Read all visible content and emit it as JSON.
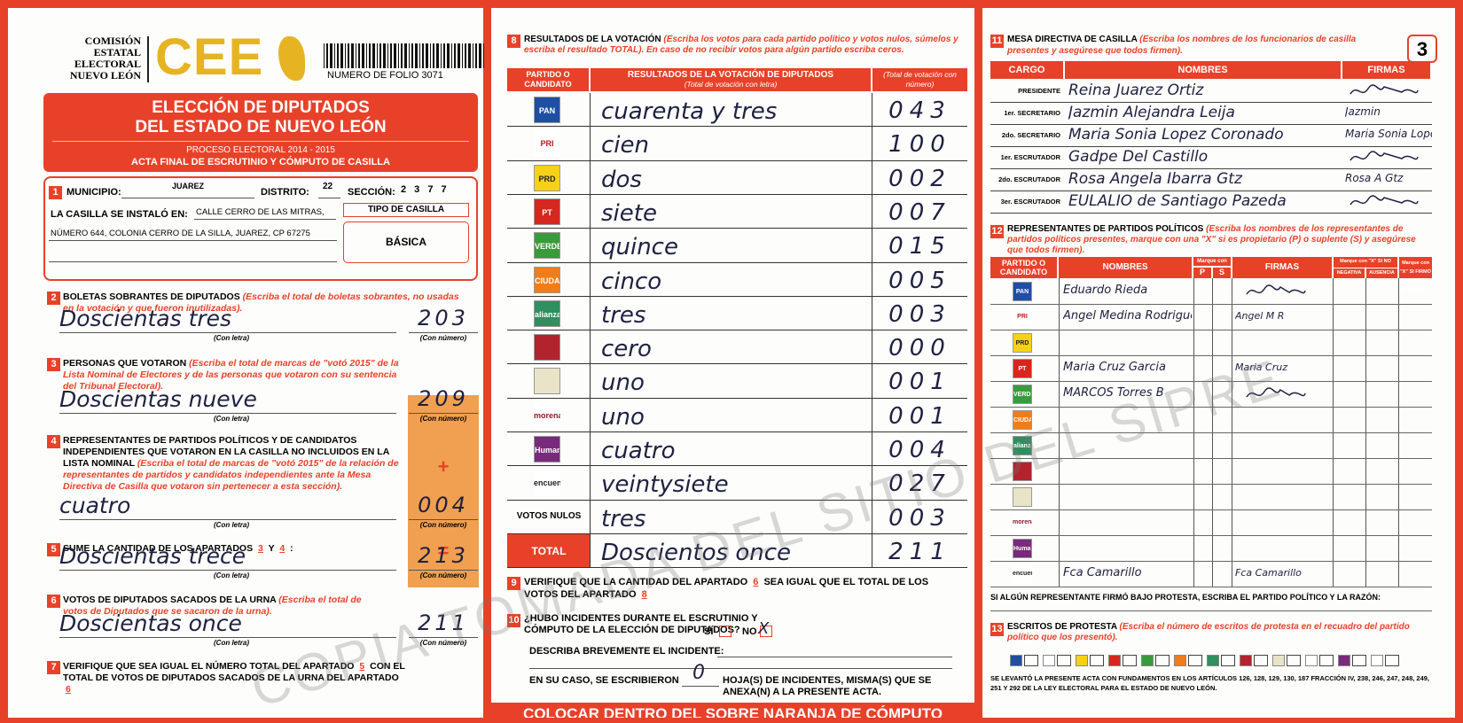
{
  "page_number": "3",
  "header": {
    "commission": [
      "COMISIÓN",
      "ESTATAL",
      "ELECTORAL",
      "NUEVO LEÓN"
    ],
    "logo": "CEE",
    "folio": "NUMERO DE FOLIO 3071"
  },
  "title": {
    "lines": [
      "ELECCIÓN DE DIPUTADOS",
      "DEL ESTADO DE NUEVO LEÓN"
    ],
    "process": "PROCESO ELECTORAL 2014 - 2015",
    "act": "ACTA FINAL DE ESCRUTINIO Y CÓMPUTO DE CASILLA"
  },
  "s1": {
    "number": "1",
    "municipio_label": "MUNICIPIO:",
    "municipio": "JUAREZ",
    "distrito_label": "DISTRITO:",
    "distrito": "22",
    "seccion_label": "SECCIÓN:",
    "seccion": "2 3 7 7",
    "installed_label": "LA CASILLA SE INSTALÓ EN:",
    "address": [
      "CALLE CERRO DE LAS MITRAS,",
      "NÚMERO 644, COLONIA CERRO DE LA SILLA, JUAREZ, CP 67275"
    ],
    "tipo_label": "TIPO DE CASILLA",
    "tipo": "BÁSICA"
  },
  "labels": {
    "con_letra": "(Con letra)",
    "con_numero": "(Con número)",
    "plus": "+",
    "equals": "="
  },
  "sections": [
    {
      "number": "2",
      "heading": [
        "BOLETAS SOBRANTES DE DIPUTADOS"
      ],
      "instruction": "(Escriba el total de boletas sobrantes, no usadas en la votación y que fueron inutilizadas).",
      "words": "Doscientas tres",
      "figure": "203"
    },
    {
      "number": "3",
      "heading": [
        "PERSONAS QUE VOTARON"
      ],
      "instruction": "(Escriba el total de marcas de \"votó 2015\" de la Lista Nominal de Electores y de las personas que votaron con su sentencia del Tribunal Electoral).",
      "words": "Doscientas nueve",
      "figure": "209"
    },
    {
      "number": "4",
      "heading": [
        "REPRESENTANTES DE PARTIDOS POLÍTICOS Y DE CANDIDATOS INDEPENDIENTES QUE VOTARON EN LA CASILLA NO INCLUIDOS EN LA LISTA NOMINAL"
      ],
      "instruction": "(Escriba el total de marcas de \"votó 2015\" de la relación de representantes de partidos y candidatos independientes ante la Mesa Directiva de Casilla que votaron sin pertenecer a esta sección).",
      "words": "cuatro",
      "figure": "004"
    },
    {
      "number": "5",
      "heading": [
        "SUME LA CANTIDAD DE LOS APARTADOS",
        "3",
        "Y",
        "4",
        ":"
      ],
      "words": "Doscientas trece",
      "figure": "213"
    },
    {
      "number": "6",
      "heading": [
        "VOTOS DE DIPUTADOS SACADOS DE LA URNA"
      ],
      "instruction": "(Escriba el total de votos de Diputados que se sacaron de la urna).",
      "words": "Doscientas once",
      "figure": "211"
    },
    {
      "number": "7",
      "heading": [
        "VERIFIQUE QUE SEA IGUAL EL NÚMERO TOTAL DEL APARTADO",
        "5",
        "CON EL TOTAL DE VOTOS DE DIPUTADOS SACADOS DE LA URNA DEL APARTADO",
        "6"
      ]
    }
  ],
  "votes": {
    "number": "8",
    "heading": "RESULTADOS DE LA VOTACIÓN",
    "instruction": "(Escriba los votos para cada partido político y votos nulos, súmelos y escriba el resultado TOTAL). En caso de no recibir votos para algún partido escriba ceros.",
    "columns": [
      "PARTIDO O CANDIDATO",
      "RESULTADOS DE LA VOTACIÓN DE DIPUTADOS",
      "(Total de votación con letra)",
      "(Total de votación con número)"
    ],
    "rows": [
      {
        "logo": "PAN",
        "words": "cuarenta y tres",
        "figure": "043"
      },
      {
        "logo": "PRI",
        "words": "cien",
        "figure": "100"
      },
      {
        "logo": "PRD",
        "words": "dos",
        "figure": "002"
      },
      {
        "logo": "PT",
        "words": "siete",
        "figure": "007"
      },
      {
        "logo": "VERDE",
        "words": "quince",
        "figure": "015"
      },
      {
        "logo": "CIUDADANO",
        "words": "cinco",
        "figure": "005"
      },
      {
        "logo": "alianza",
        "words": "tres",
        "figure": "003"
      },
      {
        "logo": null,
        "words": "cero",
        "figure": "000"
      },
      {
        "logo": null,
        "words": "uno",
        "figure": "001"
      },
      {
        "logo": "morena",
        "words": "uno",
        "figure": "001"
      },
      {
        "logo": "Humanista",
        "words": "cuatro",
        "figure": "004"
      },
      {
        "logo": "encuentro",
        "words": "veintysiete",
        "figure": "027"
      },
      {
        "logo": "VOTOS NULOS",
        "words": "tres",
        "figure": "003"
      },
      {
        "logo": "TOTAL",
        "words": "Doscientos once",
        "figure": "211"
      }
    ]
  },
  "s9": {
    "number": "9",
    "parts": [
      "VERIFIQUE QUE LA CANTIDAD DEL APARTADO",
      "6",
      "SEA IGUAL QUE EL TOTAL DE LOS VOTOS DEL APARTADO",
      "8"
    ]
  },
  "s10": {
    "number": "10",
    "question": "¿HUBO INCIDENTES DURANTE EL ESCRUTINIO Y CÓMPUTO DE LA ELECCIÓN DE DIPUTADOS?",
    "yes": "SÍ",
    "no": "NO",
    "mark": "X",
    "describe": "DESCRIBA BREVEMENTE EL INCIDENTE:",
    "sheets_before": "EN SU CASO, SE ESCRIBIERON",
    "sheets": "0",
    "sheets_after": "HOJA(S) DE INCIDENTES, MISMA(S) QUE SE ANEXA(N) A LA PRESENTE ACTA."
  },
  "s11": {
    "number": "11",
    "heading": "MESA DIRECTIVA DE CASILLA",
    "instruction": "(Escriba los nombres de los funcionarios de casilla presentes y asegúrese que todos firmen).",
    "columns": [
      "CARGO",
      "NOMBRES",
      "FIRMAS"
    ],
    "rows": [
      {
        "cargo": "PRESIDENTE",
        "name": "Reina Juarez Ortiz",
        "signature": null
      },
      {
        "cargo": "1er. SECRETARIO",
        "name": "Jazmin Alejandra Leija",
        "signature": "Jazmin"
      },
      {
        "cargo": "2do. SECRETARIO",
        "name": "Maria Sonia Lopez Coronado",
        "signature": "Maria Sonia Lopez C."
      },
      {
        "cargo": "1er. ESCRUTADOR",
        "name": "Gadpe Del Castillo",
        "signature": null
      },
      {
        "cargo": "2do. ESCRUTADOR",
        "name": "Rosa Angela Ibarra Gtz",
        "signature": "Rosa A Gtz"
      },
      {
        "cargo": "3er. ESCRUTADOR",
        "name": "EULALIO de Santiago Pazeda",
        "signature": null
      }
    ]
  },
  "s12": {
    "number": "12",
    "heading": "REPRESENTANTES DE PARTIDOS POLÍTICOS",
    "instruction": "(Escriba los nombres de los representantes de partidos políticos presentes, marque con una \"X\" si es propietario (P) o suplente (S) y asegúrese que todos firmen).",
    "columns": {
      "party": "PARTIDO O CANDIDATO",
      "names": "NOMBRES",
      "mark": "Marque con \"X\"",
      "p": "P",
      "s": "S",
      "signatures": "FIRMAS",
      "refused": "Marque con \"X\" SI NO FIRMÓ POR",
      "negativa": "NEGATIVA",
      "ausencia": "AUSENCIA",
      "protest": "Marque con \"X\" SI FIRMÓ BAJO PROTESTA"
    },
    "rows": [
      {
        "name": "Eduardo Rieda",
        "signature": null
      },
      {
        "name": "Angel Medina Rodriguez",
        "signature": "Angel M R"
      },
      {
        "name": null,
        "signature": null
      },
      {
        "name": "Maria Cruz Garcia",
        "signature": "Maria Cruz"
      },
      {
        "name": "MARCOS Torres B",
        "signature": null
      },
      {
        "name": null,
        "signature": null
      },
      {
        "name": null,
        "signature": null
      },
      {
        "name": null,
        "signature": null
      },
      {
        "name": null,
        "signature": null
      },
      {
        "name": null,
        "signature": null
      },
      {
        "name": null,
        "signature": null
      },
      {
        "name": "Fca Camarillo",
        "signature": "Fca Camarillo"
      }
    ],
    "note": "SI ALGÚN REPRESENTANTE FIRMÓ BAJO PROTESTA, ESCRIBA EL PARTIDO POLÍTICO Y LA RAZÓN:"
  },
  "s13": {
    "number": "13",
    "heading": "ESCRITOS DE PROTESTA",
    "instruction": "(Escriba el número de escritos de protesta en el recuadro del partido político que los presentó).",
    "legal": "SE LEVANTÓ LA PRESENTE ACTA CON FUNDAMENTOS EN LOS ARTÍCULOS 126, 128, 129, 130, 187 FRACCIÓN IV, 238, 246, 247, 248, 249, 251 Y 292 DE LA LEY ELECTORAL PARA EL ESTADO DE NUEVO LEÓN."
  },
  "footer": "COLOCAR DENTRO DEL SOBRE NARANJA DE CÓMPUTO",
  "watermark": "COPIA TOMADA DEL SITIO DEL SIPRE"
}
